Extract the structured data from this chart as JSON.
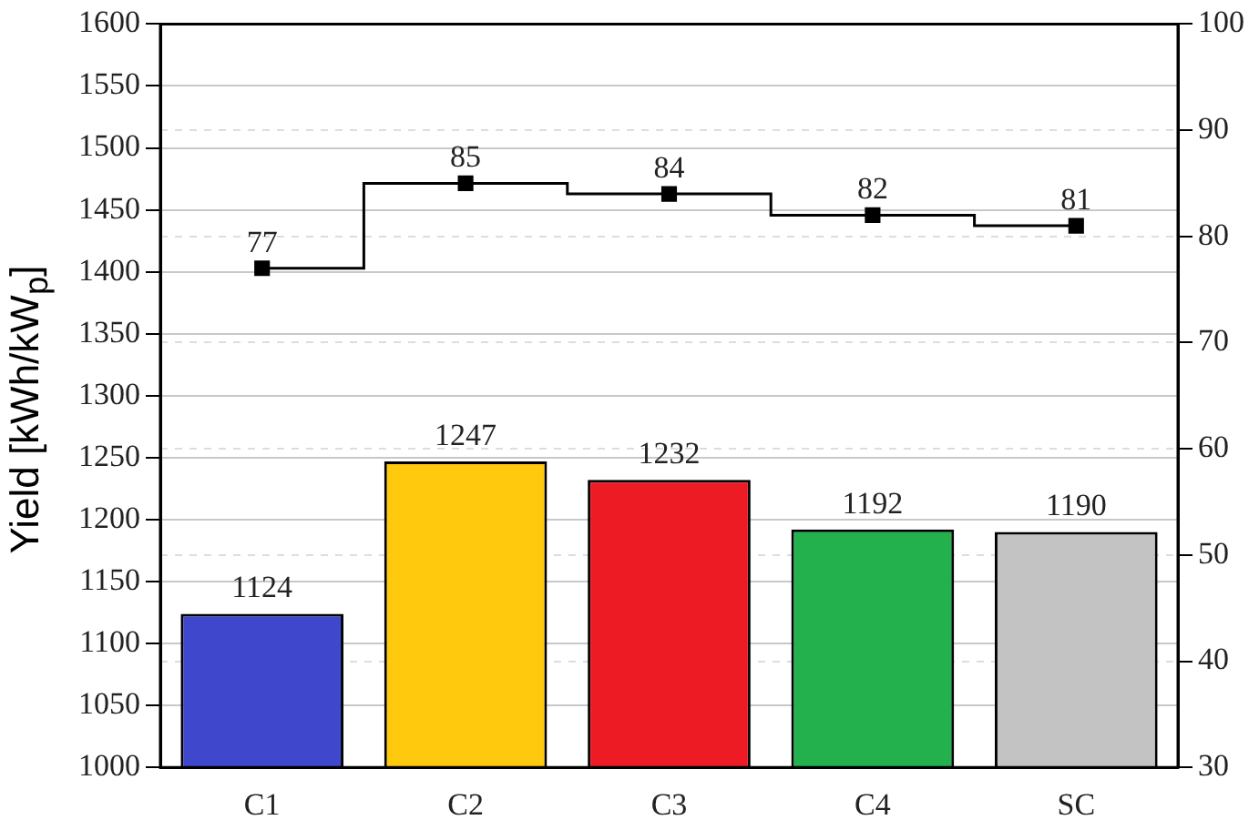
{
  "chart_data": {
    "type": "bar",
    "ylabel": "Yield [kWh/kW$_{p}$]",
    "categories": [
      "C1",
      "C2",
      "C3",
      "C4",
      "SC"
    ],
    "series": [
      {
        "colors": [
          "#3f48cc",
          "#ffc90e",
          "#ed1c24",
          "#22b14c",
          "#c3c3c3"
        ],
        "values": [
          1124,
          1247,
          1232,
          1192,
          1190
        ]
      },
      {
        "type": "step",
        "axis": "y2",
        "color": "#000000",
        "marker": "square",
        "values": [
          77,
          85,
          84,
          82,
          81
        ]
      }
    ],
    "ylim": [
      1000,
      1600
    ],
    "yticks": [
      1000,
      1050,
      1100,
      1150,
      1200,
      1250,
      1300,
      1350,
      1400,
      1450,
      1500,
      1550,
      1600
    ],
    "y2lim": [
      30,
      100
    ],
    "y2ticks": [
      30,
      40,
      50,
      60,
      70,
      80,
      90,
      100
    ],
    "grid": true,
    "data_labels": true,
    "legend": false
  }
}
